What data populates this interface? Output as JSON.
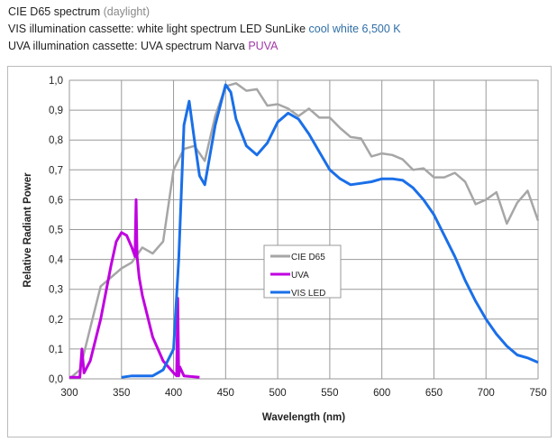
{
  "header": {
    "line1": {
      "text": "CIE D65 spectrum ",
      "note": "(daylight)"
    },
    "line2": {
      "text": "VIS illumination cassette: white light spectrum LED SunLike ",
      "note": "cool white 6,500 K"
    },
    "line3": {
      "text": "UVA illumination cassette: UVA spectrum Narva ",
      "note": "PUVA"
    }
  },
  "chart_data": {
    "type": "line",
    "title": "",
    "xlabel": "Wavelength (nm)",
    "ylabel": "Relative Radiant Power",
    "xlim": [
      300,
      750
    ],
    "ylim": [
      0,
      1
    ],
    "xticks": [
      "300",
      "350",
      "400",
      "450",
      "500",
      "550",
      "600",
      "650",
      "700",
      "750"
    ],
    "yticks": [
      "0,0",
      "0,1",
      "0,2",
      "0,3",
      "0,4",
      "0,5",
      "0,6",
      "0,7",
      "0,8",
      "0,9",
      "1,0"
    ],
    "grid": true,
    "legend_position": "center",
    "series": [
      {
        "name": "CIE D65",
        "color": "#a6a6a6",
        "x": [
          300,
          310,
          320,
          330,
          340,
          350,
          360,
          370,
          380,
          390,
          400,
          410,
          420,
          430,
          440,
          450,
          460,
          470,
          480,
          490,
          500,
          510,
          520,
          530,
          540,
          550,
          560,
          570,
          580,
          590,
          600,
          610,
          620,
          630,
          640,
          650,
          660,
          670,
          680,
          690,
          700,
          710,
          720,
          730,
          740,
          750
        ],
        "y": [
          0,
          0.03,
          0.17,
          0.31,
          0.34,
          0.37,
          0.39,
          0.44,
          0.42,
          0.46,
          0.7,
          0.77,
          0.78,
          0.73,
          0.88,
          0.98,
          0.99,
          0.965,
          0.97,
          0.915,
          0.92,
          0.905,
          0.88,
          0.905,
          0.875,
          0.875,
          0.84,
          0.81,
          0.805,
          0.745,
          0.755,
          0.75,
          0.735,
          0.7,
          0.705,
          0.675,
          0.675,
          0.69,
          0.66,
          0.585,
          0.6,
          0.625,
          0.52,
          0.59,
          0.63,
          0.53
        ]
      },
      {
        "name": "UVA",
        "color": "#c000e0",
        "x": [
          300,
          310,
          312,
          314,
          320,
          330,
          340,
          345,
          350,
          355,
          360,
          363,
          364,
          365,
          367,
          370,
          380,
          390,
          400,
          403,
          404,
          405,
          406,
          410,
          425
        ],
        "y": [
          0.005,
          0.005,
          0.1,
          0.02,
          0.06,
          0.2,
          0.38,
          0.46,
          0.49,
          0.48,
          0.44,
          0.41,
          0.6,
          0.41,
          0.34,
          0.28,
          0.14,
          0.06,
          0.02,
          0.01,
          0.27,
          0.01,
          0.04,
          0.01,
          0.005
        ]
      },
      {
        "name": "VIS LED",
        "color": "#1a6fe8",
        "x": [
          350,
          360,
          380,
          390,
          400,
          405,
          410,
          415,
          420,
          425,
          430,
          440,
          450,
          455,
          460,
          470,
          480,
          490,
          500,
          510,
          520,
          530,
          540,
          550,
          560,
          570,
          580,
          590,
          600,
          610,
          620,
          630,
          640,
          650,
          660,
          670,
          680,
          690,
          700,
          710,
          720,
          730,
          740,
          750
        ],
        "y": [
          0.005,
          0.01,
          0.01,
          0.03,
          0.1,
          0.4,
          0.85,
          0.93,
          0.8,
          0.68,
          0.65,
          0.85,
          0.985,
          0.96,
          0.87,
          0.78,
          0.75,
          0.79,
          0.86,
          0.89,
          0.87,
          0.82,
          0.76,
          0.7,
          0.67,
          0.65,
          0.655,
          0.66,
          0.67,
          0.67,
          0.665,
          0.64,
          0.6,
          0.55,
          0.48,
          0.41,
          0.33,
          0.26,
          0.2,
          0.15,
          0.11,
          0.08,
          0.07,
          0.055
        ]
      }
    ]
  }
}
